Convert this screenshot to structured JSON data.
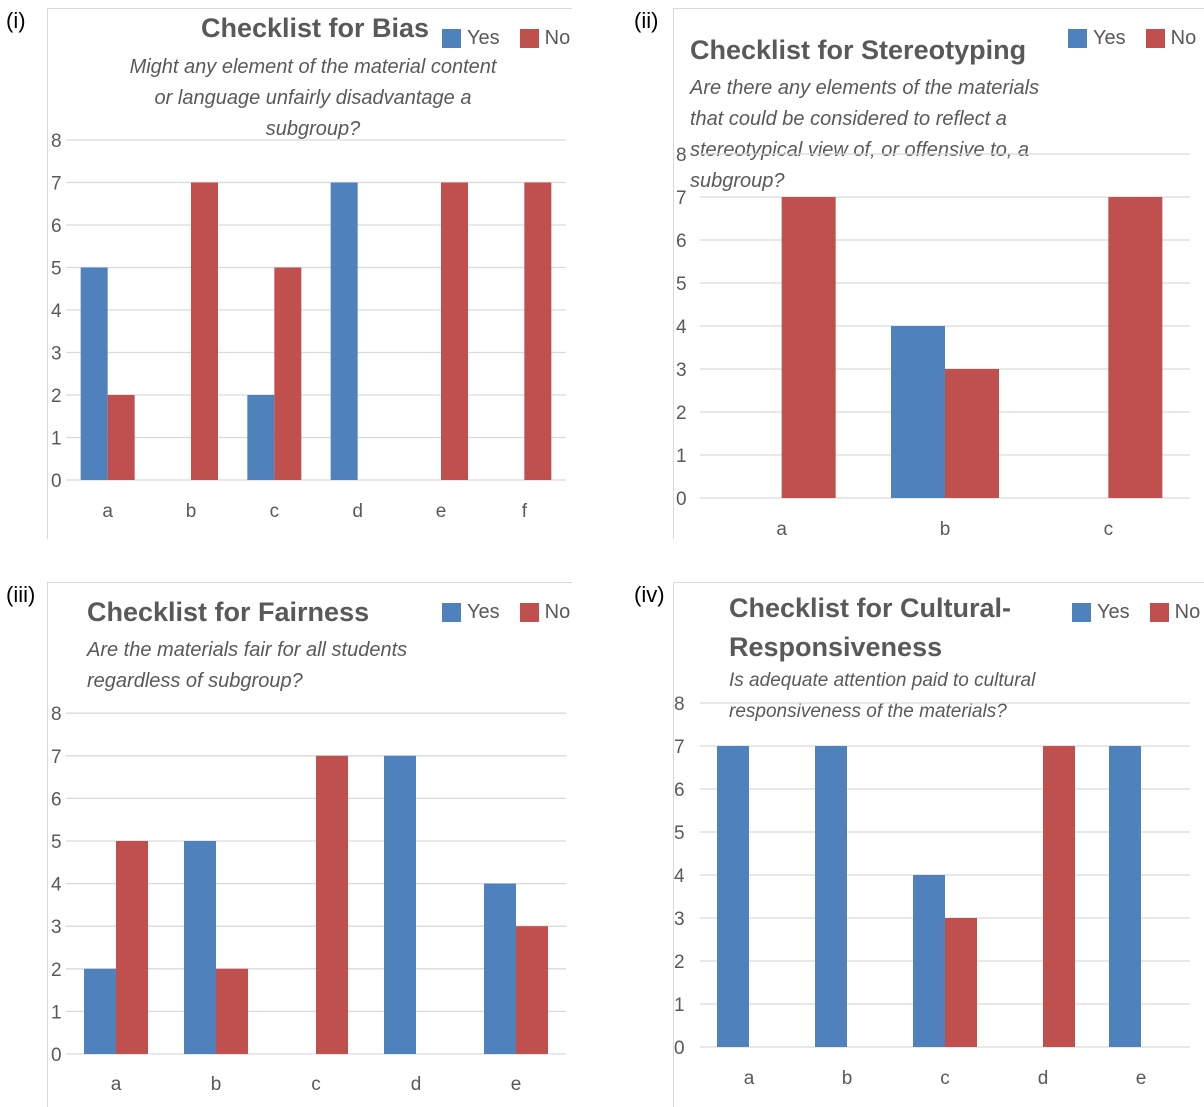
{
  "colors": {
    "yes": "#4f81bd",
    "no": "#c0504d",
    "grid": "#d9d9d9",
    "text": "#595959"
  },
  "panels": [
    {
      "tag": "(i)",
      "title": "Checklist for Bias",
      "subtitle_lines": [
        "Might any element of the material content",
        "or language unfairly disadvantage a",
        "subgroup?"
      ],
      "legend": {
        "yes": "Yes",
        "no": "No"
      },
      "chart_data": {
        "type": "bar",
        "categories": [
          "a",
          "b",
          "c",
          "d",
          "e",
          "f"
        ],
        "series": [
          {
            "name": "Yes",
            "values": [
              5,
              0,
              2,
              7,
              0,
              0
            ]
          },
          {
            "name": "No",
            "values": [
              2,
              7,
              5,
              0,
              7,
              7
            ]
          }
        ],
        "yticks": [
          "0",
          "1",
          "2",
          "3",
          "4",
          "5",
          "6",
          "7",
          "8"
        ],
        "ylim": [
          0,
          8
        ],
        "grid": true,
        "legend_position": "top-right"
      }
    },
    {
      "tag": "(ii)",
      "title": "Checklist for Stereotyping",
      "subtitle_lines": [
        "Are there any elements of the materials",
        "that could be considered to reflect a",
        "stereotypical view of, or  offensive to, a",
        "subgroup?"
      ],
      "legend": {
        "yes": "Yes",
        "no": "No"
      },
      "chart_data": {
        "type": "bar",
        "categories": [
          "a",
          "b",
          "c"
        ],
        "series": [
          {
            "name": "Yes",
            "values": [
              0,
              4,
              0
            ]
          },
          {
            "name": "No",
            "values": [
              7,
              3,
              7
            ]
          }
        ],
        "yticks": [
          "0",
          "1",
          "2",
          "3",
          "4",
          "5",
          "6",
          "7",
          "8"
        ],
        "ylim": [
          0,
          8
        ],
        "grid": true,
        "legend_position": "top-right"
      }
    },
    {
      "tag": "(iii)",
      "title": "Checklist for Fairness",
      "subtitle_lines": [
        "Are the materials fair for all students",
        "regardless of subgroup?"
      ],
      "legend": {
        "yes": "Yes",
        "no": "No"
      },
      "chart_data": {
        "type": "bar",
        "categories": [
          "a",
          "b",
          "c",
          "d",
          "e"
        ],
        "series": [
          {
            "name": "Yes",
            "values": [
              2,
              5,
              0,
              7,
              4
            ]
          },
          {
            "name": "No",
            "values": [
              5,
              2,
              7,
              0,
              3
            ]
          }
        ],
        "yticks": [
          "0",
          "1",
          "2",
          "3",
          "4",
          "5",
          "6",
          "7",
          "8"
        ],
        "ylim": [
          0,
          8
        ],
        "grid": true,
        "legend_position": "top-right"
      }
    },
    {
      "tag": "(iv)",
      "title_lines": [
        "Checklist for Cultural-",
        "Responsiveness"
      ],
      "subtitle_lines": [
        "Is adequate attention paid to cultural",
        "responsiveness of the materials?"
      ],
      "legend": {
        "yes": "Yes",
        "no": "No"
      },
      "chart_data": {
        "type": "bar",
        "categories": [
          "a",
          "b",
          "c",
          "d",
          "e"
        ],
        "series": [
          {
            "name": "Yes",
            "values": [
              7,
              7,
              4,
              0,
              7
            ]
          },
          {
            "name": "No",
            "values": [
              0,
              0,
              3,
              7,
              0
            ]
          }
        ],
        "yticks": [
          "0",
          "1",
          "2",
          "3",
          "4",
          "5",
          "6",
          "7",
          "8"
        ],
        "ylim": [
          0,
          8
        ],
        "grid": true,
        "legend_position": "top-right"
      }
    }
  ]
}
